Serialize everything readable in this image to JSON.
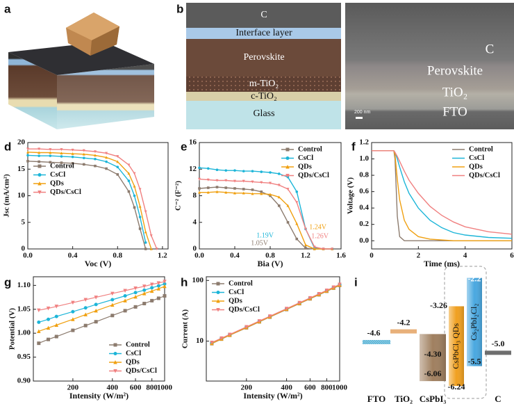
{
  "panels": [
    {
      "label": "a"
    },
    {
      "label": "b",
      "layers": [
        "C",
        "Interface layer",
        "Perovskite",
        "m-TiO₂",
        "c-TiO₂",
        "Glass"
      ],
      "sem_layers": [
        "C",
        "Perovskite",
        "TiO₂",
        "FTO"
      ],
      "scale_bar": "200 nm"
    }
  ],
  "chart_data": [
    {
      "panel": "d",
      "type": "line",
      "markers": true,
      "x_label": "Voc (V)",
      "y_label": "Jsc (mA/cm²)",
      "xlim": [
        0,
        1.25
      ],
      "xticks": [
        {
          "value": 0,
          "label": "0.0"
        },
        0.4,
        0.8,
        1.2
      ],
      "ylim": [
        0,
        20
      ],
      "yticks": [
        0,
        5,
        10,
        15,
        20
      ],
      "legend": "center left",
      "x": [
        0,
        0.1,
        0.2,
        0.3,
        0.4,
        0.5,
        0.6,
        0.7,
        0.8,
        0.9,
        0.95,
        1.0,
        1.05,
        1.1,
        1.15
      ],
      "series": [
        {
          "name": "Control",
          "color": "#8c7b6e",
          "values": [
            16.5,
            16.4,
            16.3,
            16.2,
            16.1,
            15.9,
            15.6,
            15.1,
            14.0,
            10.8,
            7.8,
            3.8,
            0,
            null,
            null
          ]
        },
        {
          "name": "CsCl",
          "color": "#1cb5d8",
          "values": [
            17.6,
            17.5,
            17.5,
            17.4,
            17.3,
            17.1,
            16.9,
            16.4,
            15.4,
            12.8,
            10.0,
            6.0,
            1.2,
            null,
            null
          ]
        },
        {
          "name": "QDs",
          "color": "#f0a010",
          "values": [
            18.2,
            18.1,
            18.1,
            18.0,
            17.9,
            17.8,
            17.6,
            17.2,
            16.4,
            14.2,
            11.8,
            8.0,
            3.2,
            0,
            null
          ]
        },
        {
          "name": "QDs/CsCl",
          "color": "#f08080",
          "values": [
            18.8,
            18.8,
            18.7,
            18.7,
            18.6,
            18.5,
            18.3,
            18.0,
            17.4,
            15.8,
            14.2,
            11.2,
            7.0,
            2.5,
            0
          ]
        }
      ]
    },
    {
      "panel": "e",
      "type": "line",
      "markers": true,
      "x_label": "Bia (V)",
      "y_label": "C⁻² (F⁻²)",
      "xlim": [
        0,
        1.6
      ],
      "xticks": [
        {
          "value": 0,
          "label": "0.0"
        },
        0.4,
        0.8,
        1.2,
        1.6
      ],
      "ylim": [
        0,
        16
      ],
      "yticks": [
        0,
        4,
        8,
        12,
        16
      ],
      "legend": "upper right",
      "x": [
        0,
        0.1,
        0.2,
        0.3,
        0.4,
        0.5,
        0.6,
        0.7,
        0.8,
        0.9,
        1.0,
        1.1,
        1.2,
        1.3,
        1.4,
        1.5
      ],
      "series": [
        {
          "name": "Control",
          "color": "#8c7b6e",
          "values": [
            9.1,
            9.2,
            9.3,
            9.2,
            9.1,
            9.0,
            8.9,
            8.6,
            8.0,
            6.5,
            4.0,
            1.5,
            0.1,
            0,
            0,
            0
          ]
        },
        {
          "name": "CsCl",
          "color": "#1cb5d8",
          "values": [
            12.2,
            12.1,
            11.9,
            11.8,
            11.8,
            11.7,
            11.7,
            11.6,
            11.5,
            11.3,
            10.8,
            8.6,
            3.0,
            0.1,
            0,
            0
          ]
        },
        {
          "name": "QDs",
          "color": "#f0a010",
          "values": [
            8.5,
            8.5,
            8.6,
            8.5,
            8.4,
            8.4,
            8.3,
            8.3,
            8.2,
            7.8,
            6.5,
            3.8,
            0.6,
            0,
            0,
            0
          ]
        },
        {
          "name": "QDs/CsCl",
          "color": "#f08080",
          "values": [
            10.5,
            10.4,
            10.3,
            10.3,
            10.2,
            10.2,
            10.1,
            10.0,
            9.9,
            9.6,
            9.0,
            7.0,
            3.0,
            0.3,
            0,
            0
          ]
        }
      ],
      "annotations": [
        {
          "text": "1.19V",
          "color": "#1cb5d8"
        },
        {
          "text": "1.05V",
          "color": "#8c7b6e"
        },
        {
          "text": "1.24V",
          "color": "#f0a010"
        },
        {
          "text": "1.26V",
          "color": "#f08080"
        }
      ]
    },
    {
      "panel": "f",
      "type": "line",
      "markers": false,
      "x_label": "Time (ms)",
      "y_label": "Voltage (V)",
      "xlim": [
        0,
        6
      ],
      "xticks": [
        0,
        2,
        4,
        6
      ],
      "ylim": [
        -0.1,
        1.2
      ],
      "yticks": [
        {
          "value": 0,
          "label": "0.0"
        },
        0.2,
        0.4,
        0.6,
        0.8,
        {
          "value": 1,
          "label": "1.0"
        },
        1.2
      ],
      "legend": "upper right",
      "x": [
        0,
        0.5,
        0.95,
        1.0,
        1.1,
        1.2,
        1.4,
        1.6,
        2,
        2.5,
        3,
        3.5,
        4,
        5,
        6
      ],
      "series": [
        {
          "name": "Control",
          "color": "#8c7b6e",
          "values": [
            1.1,
            1.1,
            1.1,
            1.0,
            0.3,
            0.05,
            0,
            0,
            0,
            0,
            0,
            0,
            0,
            0,
            0
          ]
        },
        {
          "name": "CsCl",
          "color": "#1cb5d8",
          "values": [
            1.1,
            1.1,
            1.1,
            1.08,
            1.0,
            0.9,
            0.72,
            0.58,
            0.4,
            0.25,
            0.16,
            0.1,
            0.07,
            0.04,
            0.03
          ]
        },
        {
          "name": "QDs",
          "color": "#f0a010",
          "values": [
            1.1,
            1.1,
            1.1,
            1.05,
            0.75,
            0.5,
            0.25,
            0.14,
            0.05,
            0.02,
            0.01,
            0,
            0,
            0,
            0
          ]
        },
        {
          "name": "QDs/CsCl",
          "color": "#f08080",
          "values": [
            1.1,
            1.1,
            1.1,
            1.08,
            1.03,
            0.97,
            0.85,
            0.74,
            0.58,
            0.42,
            0.31,
            0.23,
            0.17,
            0.11,
            0.08
          ]
        }
      ]
    },
    {
      "panel": "g",
      "type": "scatter",
      "fit": true,
      "x_label": "Intensity (W/m²)",
      "y_label": "Potential (V)",
      "xscale": "log",
      "xlim": [
        100,
        1000
      ],
      "xticks": [
        200,
        400,
        600,
        800,
        1000
      ],
      "ylim": [
        0.9,
        1.118
      ],
      "yticks": [
        {
          "value": 0.9,
          "label": "0.90"
        },
        0.95,
        {
          "value": 1,
          "label": "1.00"
        },
        1.05,
        {
          "value": 1.1,
          "label": "1.10"
        }
      ],
      "legend": "lower right",
      "x": [
        110,
        130,
        150,
        200,
        250,
        300,
        400,
        500,
        600,
        700,
        800,
        900,
        1000
      ],
      "series": [
        {
          "name": "Control",
          "color": "#8c7b6e",
          "values": [
            0.979,
            0.987,
            0.993,
            1.006,
            1.016,
            1.024,
            1.037,
            1.047,
            1.055,
            1.062,
            1.068,
            1.073,
            1.078
          ]
        },
        {
          "name": "CsCl",
          "color": "#1cb5d8",
          "values": [
            1.023,
            1.029,
            1.035,
            1.045,
            1.053,
            1.06,
            1.07,
            1.078,
            1.085,
            1.09,
            1.095,
            1.099,
            1.103
          ]
        },
        {
          "name": "QDs",
          "color": "#f0a010",
          "values": [
            1.004,
            1.011,
            1.017,
            1.029,
            1.039,
            1.047,
            1.059,
            1.068,
            1.076,
            1.083,
            1.088,
            1.093,
            1.098
          ]
        },
        {
          "name": "QDs/CsCl",
          "color": "#f08080",
          "values": [
            1.048,
            1.052,
            1.056,
            1.064,
            1.07,
            1.075,
            1.083,
            1.089,
            1.094,
            1.098,
            1.102,
            1.105,
            1.108
          ]
        }
      ]
    },
    {
      "panel": "h",
      "type": "scatter",
      "fit": true,
      "x_label": "Intensity (W/m²)",
      "y_label": "Current (A)",
      "xscale": "log",
      "yscale": "log",
      "xlim": [
        100,
        1000
      ],
      "xticks": [
        200,
        400,
        600,
        800,
        1000
      ],
      "ylim": [
        2.2,
        115
      ],
      "yticks": [
        10,
        100
      ],
      "legend": "upper left",
      "x": [
        110,
        130,
        150,
        200,
        250,
        300,
        400,
        500,
        600,
        700,
        800,
        900,
        1000
      ],
      "series": [
        {
          "name": "Control",
          "color": "#8c7b6e",
          "values": [
            9.1,
            10.8,
            12.5,
            16.6,
            20.8,
            24.9,
            33.2,
            41.5,
            49.8,
            58.1,
            66.4,
            74.7,
            83.0
          ]
        },
        {
          "name": "CsCl",
          "color": "#1cb5d8",
          "values": [
            9.35,
            11.05,
            12.75,
            17.0,
            21.25,
            25.5,
            34.0,
            42.5,
            51.0,
            59.5,
            68.0,
            76.5,
            85.0
          ]
        },
        {
          "name": "QDs",
          "color": "#f0a010",
          "values": [
            9.2,
            10.9,
            12.6,
            16.8,
            21.0,
            25.2,
            33.6,
            42.0,
            50.4,
            58.8,
            67.2,
            75.6,
            84.0
          ]
        },
        {
          "name": "QDs/CsCl",
          "color": "#f08080",
          "values": [
            9.5,
            11.2,
            12.9,
            17.2,
            21.5,
            25.8,
            34.4,
            43.0,
            51.6,
            60.2,
            68.8,
            77.4,
            86.0
          ]
        }
      ]
    },
    {
      "panel": "i",
      "type": "energy",
      "ylim": [
        -6.5,
        -2.0
      ],
      "categories": [
        "FTO",
        "TiO₂",
        "CsPbI₃",
        "CsPbCl₃ QDs",
        "Cs₂PbI₂Cl₂",
        "C"
      ],
      "label_inside": [
        false,
        false,
        false,
        true,
        true,
        false
      ],
      "colors": [
        "#5ab4d6",
        "#e8b07a",
        "#a08060",
        "#f0a020",
        "#4aa8e0",
        "#6e6e6e"
      ],
      "top": [
        -4.6,
        -4.2,
        -4.3,
        -3.26,
        -2.2,
        -5.0
      ],
      "top_labels": [
        "-4.6",
        "-4.2",
        "-4.30",
        "-3.26",
        "-2.2",
        "-5.0"
      ],
      "bottom": [
        null,
        null,
        -6.06,
        -6.24,
        -5.5,
        null
      ],
      "bottom_labels": [
        null,
        null,
        "-6.06",
        "-6.24",
        "-5.5",
        null
      ]
    }
  ]
}
